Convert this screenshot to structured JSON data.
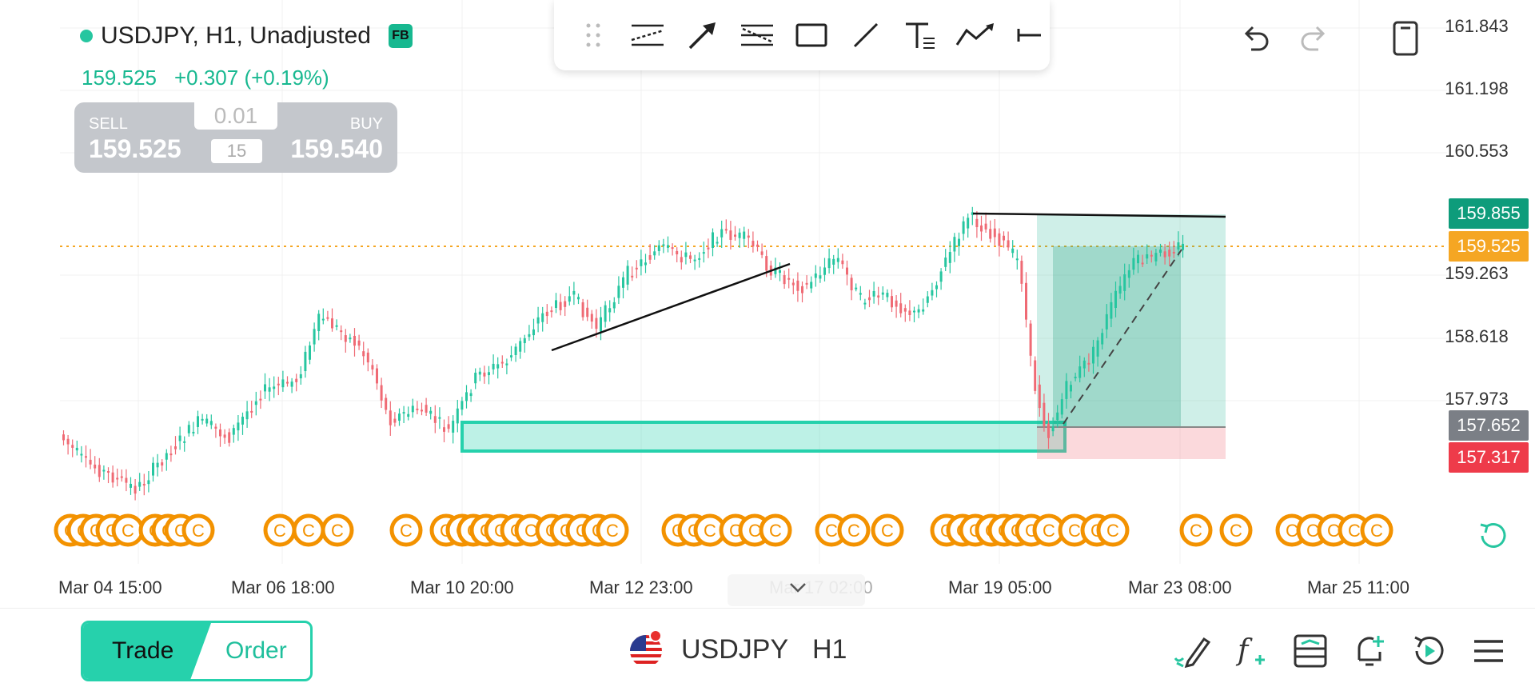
{
  "symbol": {
    "title": "USDJPY, H1, Unadjusted",
    "badge": "FB",
    "price": "159.525",
    "change": "+0.307 (+0.19%)"
  },
  "trade_panel": {
    "sell_label": "SELL",
    "sell_price": "159.525",
    "buy_label": "BUY",
    "buy_price": "159.540",
    "lot_value": "0.01",
    "step_value": "15"
  },
  "draw_toolbar": {
    "tools": [
      "drag-handle-icon",
      "parallel-channel-icon",
      "arrow-icon",
      "fib-retracement-icon",
      "rectangle-icon",
      "trend-line-icon",
      "text-icon",
      "polyline-icon",
      "horizontal-ray-icon"
    ]
  },
  "top_actions": [
    "undo-icon",
    "redo-icon",
    "device-icon"
  ],
  "price_axis": {
    "labels": [
      "161.843",
      "161.198",
      "160.553",
      "159.263",
      "158.618",
      "157.973"
    ],
    "tags": [
      {
        "value": "159.855",
        "color": "#0e9c7b"
      },
      {
        "value": "159.525",
        "color": "#f5a623"
      },
      {
        "value": "157.652",
        "color": "#7b7f86"
      },
      {
        "value": "157.317",
        "color": "#ee3b4a"
      }
    ]
  },
  "time_axis": {
    "labels": [
      "Mar 04 15:00",
      "Mar 06 18:00",
      "Mar 10 20:00",
      "Mar 12 23:00",
      "Mar 17 02:00",
      "Mar 19 05:00",
      "Mar 23 08:00",
      "Mar 25 11:00"
    ]
  },
  "event_marker_letter": "C",
  "colors": {
    "up": "#26c6a0",
    "down": "#ef6a74",
    "accent": "#26d1ac",
    "event": "#f39200",
    "current_price": "#f5a623"
  },
  "bottom_bar": {
    "trade_label": "Trade",
    "order_label": "Order",
    "symbol": "USDJPY",
    "timeframe": "H1",
    "icons": [
      "drawing-pencil-icon",
      "indicators-fx-icon",
      "templates-icon",
      "alert-bell-icon",
      "replay-icon",
      "menu-icon"
    ]
  }
}
